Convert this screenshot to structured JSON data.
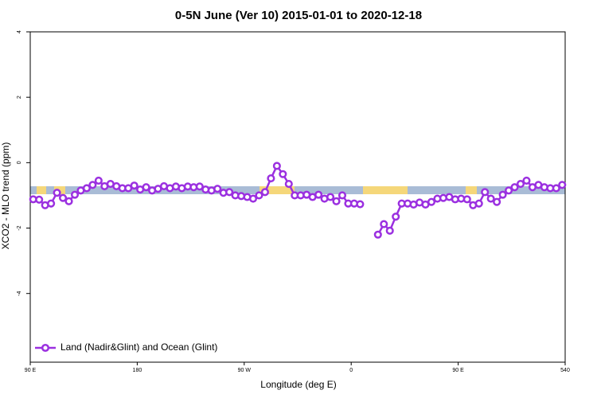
{
  "chart_data": {
    "type": "line",
    "title": "0-5N June (Ver 10)   2015-01-01 to 2020-12-18",
    "x_label": "Longitude (deg E)",
    "y_label": "XCO2 - MLO trend (ppm)",
    "xlim": [
      90,
      540
    ],
    "ylim": [
      -6.1,
      4
    ],
    "xticks": [
      {
        "value": 90,
        "label": "90 E"
      },
      180,
      {
        "value": 270,
        "label": "90 W"
      },
      {
        "value": 360,
        "label": "0"
      },
      {
        "value": 450,
        "label": "90 E"
      },
      540
    ],
    "yticks": [
      -4,
      -2,
      0,
      2,
      4
    ],
    "legend": "bottom-left",
    "x": [
      92.5,
      97.5,
      102.5,
      107.5,
      112.5,
      117.5,
      122.5,
      127.5,
      132.5,
      137.5,
      142.5,
      147.5,
      152.5,
      157.5,
      162.5,
      167.5,
      172.5,
      177.5,
      182.5,
      187.5,
      192.5,
      197.5,
      202.5,
      207.5,
      212.5,
      217.5,
      222.5,
      227.5,
      232.5,
      237.5,
      242.5,
      247.5,
      252.5,
      257.5,
      262.5,
      267.5,
      272.5,
      277.5,
      282.5,
      287.5,
      292.5,
      297.5,
      302.5,
      307.5,
      312.5,
      317.5,
      322.5,
      327.5,
      332.5,
      337.5,
      342.5,
      347.5,
      352.5,
      357.5,
      362.5,
      367.5,
      372.5,
      377.5,
      382.5,
      387.5,
      392.5,
      397.5,
      402.5,
      407.5,
      412.5,
      417.5,
      422.5,
      427.5,
      432.5,
      437.5,
      442.5,
      447.5,
      452.5,
      457.5,
      462.5,
      467.5,
      472.5,
      477.5,
      482.5,
      487.5,
      492.5,
      497.5,
      502.5,
      507.5,
      512.5,
      517.5,
      522.5,
      527.5,
      532.5,
      537.5
    ],
    "series": [
      {
        "name": "Land (Nadir&Glint) and Ocean (Glint)",
        "color": "#9b30e0",
        "values": [
          -1.12,
          -1.13,
          -1.3,
          -1.25,
          -0.92,
          -1.08,
          -1.18,
          -0.98,
          -0.85,
          -0.78,
          -0.68,
          -0.55,
          -0.72,
          -0.65,
          -0.72,
          -0.78,
          -0.78,
          -0.7,
          -0.82,
          -0.75,
          -0.85,
          -0.8,
          -0.72,
          -0.78,
          -0.73,
          -0.78,
          -0.73,
          -0.75,
          -0.73,
          -0.82,
          -0.85,
          -0.8,
          -0.92,
          -0.9,
          -1.0,
          -1.02,
          -1.05,
          -1.1,
          -1.0,
          -0.9,
          -0.48,
          -0.1,
          -0.35,
          -0.65,
          -1.0,
          -1.0,
          -0.98,
          -1.05,
          -0.98,
          -1.1,
          -1.05,
          -1.18,
          -1.0,
          -1.25,
          -1.25,
          -1.27,
          null,
          null,
          -2.2,
          -1.88,
          -2.08,
          -1.65,
          -1.25,
          -1.25,
          -1.28,
          -1.22,
          -1.28,
          -1.2,
          -1.1,
          -1.08,
          -1.05,
          -1.12,
          -1.1,
          -1.12,
          -1.3,
          -1.25,
          -0.9,
          -1.1,
          -1.2,
          -0.98,
          -0.85,
          -0.75,
          -0.65,
          -0.55,
          -0.75,
          -0.68,
          -0.75,
          -0.78,
          -0.78,
          -0.68
        ]
      }
    ]
  }
}
